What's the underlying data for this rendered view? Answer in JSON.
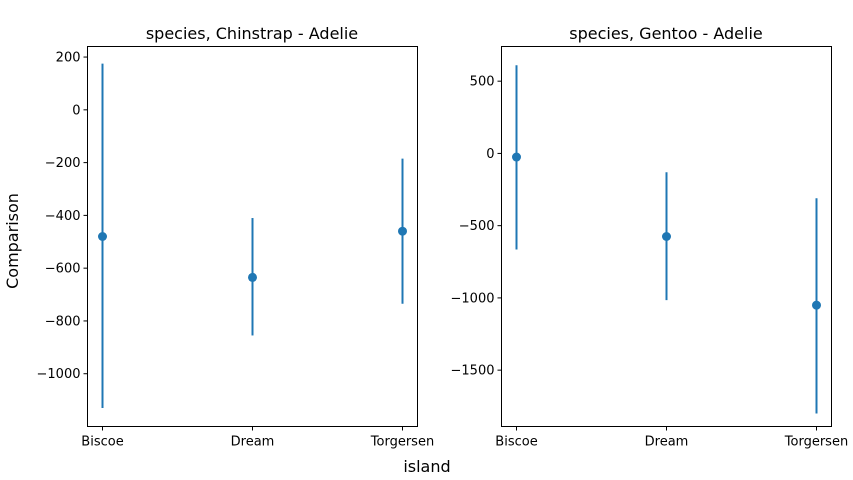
{
  "figure": {
    "xlabel": "island",
    "ylabel": "Comparison"
  },
  "chart_data": [
    {
      "type": "errorbar",
      "title": "species, Chinstrap - Adelie",
      "categories": [
        "Biscoe",
        "Dream",
        "Torgersen"
      ],
      "values": [
        -480,
        -635,
        -460
      ],
      "lower": [
        -1130,
        -855,
        -735
      ],
      "upper": [
        175,
        -410,
        -185
      ],
      "ylim": [
        -1200,
        240
      ],
      "yticks": [
        200,
        0,
        -200,
        -400,
        -600,
        -800,
        -1000
      ],
      "ytick_labels": [
        "200",
        "0",
        "−200",
        "−400",
        "−600",
        "−800",
        "−1000"
      ],
      "color": "#1f77b4"
    },
    {
      "type": "errorbar",
      "title": "species, Gentoo - Adelie",
      "categories": [
        "Biscoe",
        "Dream",
        "Torgersen"
      ],
      "values": [
        -25,
        -575,
        -1050
      ],
      "lower": [
        -665,
        -1015,
        -1800
      ],
      "upper": [
        610,
        -130,
        -310
      ],
      "ylim": [
        -1890,
        740
      ],
      "yticks": [
        500,
        0,
        -500,
        -1000,
        -1500
      ],
      "ytick_labels": [
        "500",
        "0",
        "−500",
        "−1000",
        "−1500"
      ],
      "color": "#1f77b4"
    }
  ]
}
